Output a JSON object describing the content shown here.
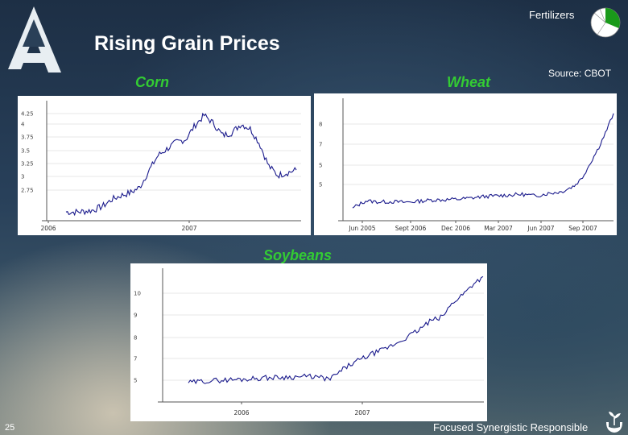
{
  "slide": {
    "title": "Rising Grain Prices",
    "section_label": "Fertilizers",
    "source": "Source: CBOT",
    "page_number": "25",
    "tagline": "Focused  Synergistic Responsible",
    "logo_icon": "company-logo-icon",
    "pie_icon": "section-pie-icon",
    "tagline_icon": "hand-plant-icon",
    "colors": {
      "chart_title": "#33cc33",
      "series_line": "#1a1a8c",
      "pie_highlight": "#1a9a1a"
    }
  },
  "chart_data": [
    {
      "type": "line",
      "title": "Corn",
      "xlabel": "",
      "ylabel": "",
      "x_tick_labels": [
        "2006",
        "2007"
      ],
      "y_tick_labels": [
        "4.25",
        "4",
        "3.75",
        "3.5",
        "3.25",
        "3",
        "2.75"
      ],
      "ylim": [
        2.6,
        4.4
      ],
      "grid": true,
      "x": [
        0.0,
        0.04,
        0.08,
        0.12,
        0.16,
        0.2,
        0.24,
        0.28,
        0.32,
        0.36,
        0.4,
        0.44,
        0.48,
        0.52,
        0.56,
        0.6,
        0.64,
        0.68,
        0.72,
        0.76,
        0.8,
        0.84,
        0.88,
        0.92,
        0.96,
        1.0
      ],
      "series": [
        {
          "values": [
            2.73,
            2.73,
            2.74,
            2.76,
            2.82,
            2.92,
            2.98,
            3.02,
            3.1,
            3.35,
            3.58,
            3.68,
            3.78,
            3.82,
            4.03,
            4.18,
            4.06,
            3.88,
            3.92,
            4.05,
            3.98,
            3.76,
            3.42,
            3.28,
            3.32,
            3.36
          ]
        }
      ]
    },
    {
      "type": "line",
      "title": "Wheat",
      "xlabel": "",
      "ylabel": "",
      "x_tick_labels": [
        "Jun 2005",
        "Sept 2006",
        "Dec 2006",
        "Mar 2007",
        "Jun 2007",
        "Sep 2007"
      ],
      "y_tick_labels": [
        "8",
        "7",
        "5",
        "5"
      ],
      "grid": true,
      "x": [
        0.0,
        0.05,
        0.1,
        0.15,
        0.2,
        0.25,
        0.3,
        0.35,
        0.4,
        0.45,
        0.5,
        0.55,
        0.6,
        0.65,
        0.7,
        0.75,
        0.8,
        0.85,
        0.88,
        0.91,
        0.94,
        0.97,
        1.0
      ],
      "series": [
        {
          "values": [
            3.3,
            3.75,
            3.68,
            3.7,
            3.66,
            3.72,
            3.8,
            3.82,
            3.85,
            3.92,
            4.02,
            4.06,
            4.12,
            4.16,
            4.06,
            4.22,
            4.32,
            4.7,
            5.2,
            6.1,
            7.0,
            8.05,
            9.25
          ]
        }
      ]
    },
    {
      "type": "line",
      "title": "Soybeans",
      "xlabel": "",
      "ylabel": "",
      "x_tick_labels": [
        "2006",
        "2007"
      ],
      "y_tick_labels": [
        "10",
        "9",
        "8",
        "7",
        "5"
      ],
      "grid": true,
      "x": [
        0.0,
        0.06,
        0.12,
        0.18,
        0.24,
        0.3,
        0.36,
        0.42,
        0.48,
        0.54,
        0.58,
        0.62,
        0.66,
        0.7,
        0.74,
        0.78,
        0.82,
        0.86,
        0.9,
        0.94,
        0.97,
        1.0
      ],
      "series": [
        {
          "values": [
            5.7,
            5.78,
            5.82,
            5.85,
            5.9,
            5.93,
            5.95,
            5.97,
            5.85,
            6.4,
            6.65,
            6.9,
            7.08,
            7.32,
            7.6,
            7.9,
            8.28,
            8.45,
            9.1,
            9.5,
            9.9,
            10.15
          ]
        }
      ]
    }
  ]
}
